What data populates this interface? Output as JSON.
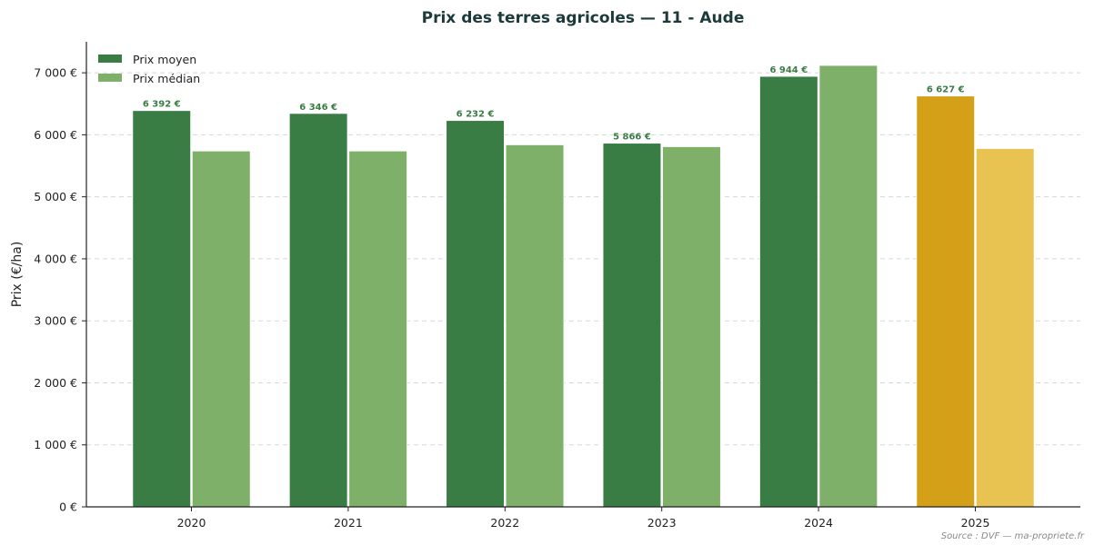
{
  "chart_data": {
    "type": "bar",
    "title": "Prix des terres agricoles — 11 - Aude",
    "ylabel": "Prix (€/ha)",
    "xlabel": "",
    "categories": [
      "2020",
      "2021",
      "2022",
      "2023",
      "2024",
      "2025"
    ],
    "series": [
      {
        "name": "Prix moyen",
        "color": "#3a7d44",
        "values": [
          6392,
          6346,
          6232,
          5866,
          6944,
          6627
        ],
        "labels": [
          "6 392 €",
          "6 346 €",
          "6 232 €",
          "5 866 €",
          "6 944 €",
          "6 627 €"
        ]
      },
      {
        "name": "Prix médian",
        "color": "#7fb069",
        "values": [
          5740,
          5740,
          5840,
          5810,
          7120,
          5780
        ]
      }
    ],
    "highlight": {
      "category": "2025",
      "colors": [
        "#d4a017",
        "#e8c352"
      ]
    },
    "yticks": [
      0,
      1000,
      2000,
      3000,
      4000,
      5000,
      6000,
      7000
    ],
    "ytick_labels": [
      "0 €",
      "1 000 €",
      "2 000 €",
      "3 000 €",
      "4 000 €",
      "5 000 €",
      "6 000 €",
      "7 000 €"
    ],
    "ylim": [
      0,
      7500
    ],
    "grid": true,
    "legend_position": "top-left",
    "source": "Source : DVF — ma-propriete.fr"
  }
}
